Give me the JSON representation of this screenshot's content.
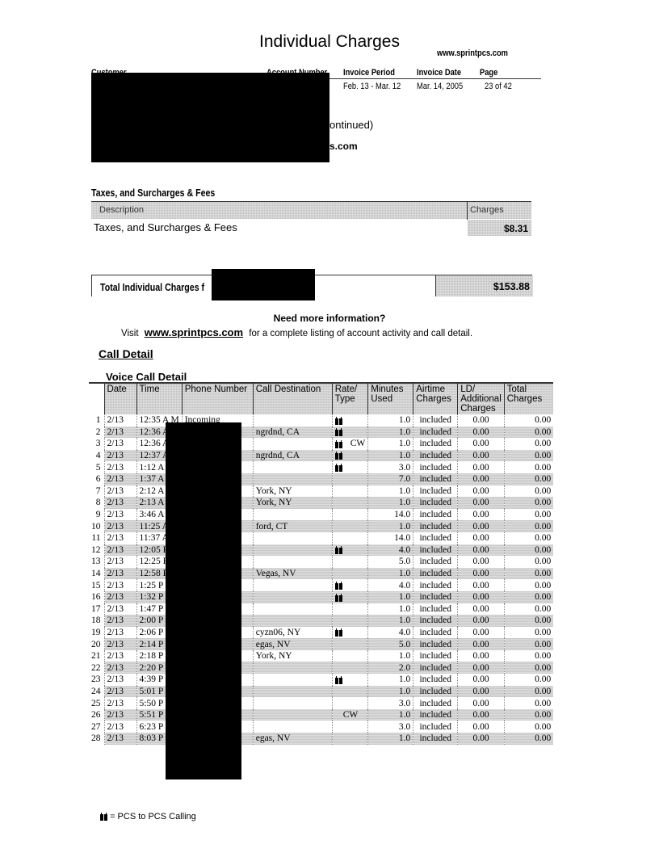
{
  "header": {
    "title": "Individual Charges",
    "website": "www.sprintpcs.com",
    "columns": [
      "Customer",
      "Account Number",
      "Invoice Period",
      "Invoice Date",
      "Page"
    ],
    "invoice_period": "Feb. 13 - Mar. 12",
    "invoice_date": "Mar. 14, 2005",
    "page": "23 of 42",
    "continued_fragment": "ontinued)",
    "email_fragment": "s.com"
  },
  "taxes": {
    "section_title": "Taxes, and Surcharges & Fees",
    "col_description": "Description",
    "col_charges": "Charges",
    "row_description": "Taxes, and Surcharges & Fees",
    "row_charges": "$8.31"
  },
  "total": {
    "label": "Total Individual Charges f",
    "amount": "$153.88"
  },
  "info": {
    "heading": "Need more information?",
    "visit": "Visit",
    "link": "www.sprintpcs.com",
    "rest": "for a complete listing of account activity and call detail."
  },
  "call_detail": {
    "title": "Call Detail",
    "subtitle": "Voice Call Detail",
    "columns": [
      "Date",
      "Time",
      "Phone Number",
      "Call Destination",
      "Rate/ Type",
      "Minutes Used",
      "Airtime Charges",
      "LD/ Additional Charges",
      "Total Charges"
    ],
    "rows": [
      {
        "n": "1",
        "date": "2/13",
        "time": "12:35 A M",
        "phone": "Incoming",
        "dest": "",
        "pcs": true,
        "type": "",
        "min": "1.0",
        "air": "included",
        "ld": "0.00",
        "total": "0.00"
      },
      {
        "n": "2",
        "date": "2/13",
        "time": "12:36 A",
        "phone": "",
        "dest": "ngrdnd, CA",
        "pcs": true,
        "type": "",
        "min": "1.0",
        "air": "included",
        "ld": "0.00",
        "total": "0.00"
      },
      {
        "n": "3",
        "date": "2/13",
        "time": "12:36 A",
        "phone": "",
        "dest": "",
        "pcs": true,
        "type": "CW",
        "min": "1.0",
        "air": "included",
        "ld": "0.00",
        "total": "0.00"
      },
      {
        "n": "4",
        "date": "2/13",
        "time": "12:37 A",
        "phone": "",
        "dest": "ngrdnd, CA",
        "pcs": true,
        "type": "",
        "min": "1.0",
        "air": "included",
        "ld": "0.00",
        "total": "0.00"
      },
      {
        "n": "5",
        "date": "2/13",
        "time": "1:12 A M",
        "phone": "",
        "dest": "",
        "pcs": true,
        "type": "",
        "min": "3.0",
        "air": "included",
        "ld": "0.00",
        "total": "0.00"
      },
      {
        "n": "6",
        "date": "2/13",
        "time": "1:37 A M",
        "phone": "",
        "dest": "",
        "pcs": false,
        "type": "",
        "min": "7.0",
        "air": "included",
        "ld": "0.00",
        "total": "0.00"
      },
      {
        "n": "7",
        "date": "2/13",
        "time": "2:12 A M",
        "phone": "",
        "dest": "York, NY",
        "pcs": false,
        "type": "",
        "min": "1.0",
        "air": "included",
        "ld": "0.00",
        "total": "0.00"
      },
      {
        "n": "8",
        "date": "2/13",
        "time": "2:13 A M",
        "phone": "",
        "dest": "York, NY",
        "pcs": false,
        "type": "",
        "min": "1.0",
        "air": "included",
        "ld": "0.00",
        "total": "0.00"
      },
      {
        "n": "9",
        "date": "2/13",
        "time": "3:46 A M",
        "phone": "",
        "dest": "",
        "pcs": false,
        "type": "",
        "min": "14.0",
        "air": "included",
        "ld": "0.00",
        "total": "0.00"
      },
      {
        "n": "10",
        "date": "2/13",
        "time": "11:25 A",
        "phone": "",
        "dest": "ford, CT",
        "pcs": false,
        "type": "",
        "min": "1.0",
        "air": "included",
        "ld": "0.00",
        "total": "0.00"
      },
      {
        "n": "11",
        "date": "2/13",
        "time": "11:37 A",
        "phone": "",
        "dest": "",
        "pcs": false,
        "type": "",
        "min": "14.0",
        "air": "included",
        "ld": "0.00",
        "total": "0.00"
      },
      {
        "n": "12",
        "date": "2/13",
        "time": "12:05 P",
        "phone": "",
        "dest": "",
        "pcs": true,
        "type": "",
        "min": "4.0",
        "air": "included",
        "ld": "0.00",
        "total": "0.00"
      },
      {
        "n": "13",
        "date": "2/13",
        "time": "12:25 P",
        "phone": "",
        "dest": "",
        "pcs": false,
        "type": "",
        "min": "5.0",
        "air": "included",
        "ld": "0.00",
        "total": "0.00"
      },
      {
        "n": "14",
        "date": "2/13",
        "time": "12:58 P",
        "phone": "",
        "dest": "Vegas, NV",
        "pcs": false,
        "type": "",
        "min": "1.0",
        "air": "included",
        "ld": "0.00",
        "total": "0.00"
      },
      {
        "n": "15",
        "date": "2/13",
        "time": "1:25 P M",
        "phone": "",
        "dest": "",
        "pcs": true,
        "type": "",
        "min": "4.0",
        "air": "included",
        "ld": "0.00",
        "total": "0.00"
      },
      {
        "n": "16",
        "date": "2/13",
        "time": "1:32 P M",
        "phone": "",
        "dest": "",
        "pcs": true,
        "type": "",
        "min": "1.0",
        "air": "included",
        "ld": "0.00",
        "total": "0.00"
      },
      {
        "n": "17",
        "date": "2/13",
        "time": "1:47 P M",
        "phone": "",
        "dest": "",
        "pcs": false,
        "type": "",
        "min": "1.0",
        "air": "included",
        "ld": "0.00",
        "total": "0.00"
      },
      {
        "n": "18",
        "date": "2/13",
        "time": "2:00 P M",
        "phone": "",
        "dest": "",
        "pcs": false,
        "type": "",
        "min": "1.0",
        "air": "included",
        "ld": "0.00",
        "total": "0.00"
      },
      {
        "n": "19",
        "date": "2/13",
        "time": "2:06 P M",
        "phone": "",
        "dest": "cyzn06, NY",
        "pcs": true,
        "type": "",
        "min": "4.0",
        "air": "included",
        "ld": "0.00",
        "total": "0.00"
      },
      {
        "n": "20",
        "date": "2/13",
        "time": "2:14 P M",
        "phone": "",
        "dest": "egas, NV",
        "pcs": false,
        "type": "",
        "min": "5.0",
        "air": "included",
        "ld": "0.00",
        "total": "0.00"
      },
      {
        "n": "21",
        "date": "2/13",
        "time": "2:18 P M",
        "phone": "",
        "dest": "York, NY",
        "pcs": false,
        "type": "",
        "min": "1.0",
        "air": "included",
        "ld": "0.00",
        "total": "0.00"
      },
      {
        "n": "22",
        "date": "2/13",
        "time": "2:20 P M",
        "phone": "",
        "dest": "",
        "pcs": false,
        "type": "",
        "min": "2.0",
        "air": "included",
        "ld": "0.00",
        "total": "0.00"
      },
      {
        "n": "23",
        "date": "2/13",
        "time": "4:39 P M",
        "phone": "",
        "dest": "",
        "pcs": true,
        "type": "",
        "min": "1.0",
        "air": "included",
        "ld": "0.00",
        "total": "0.00"
      },
      {
        "n": "24",
        "date": "2/13",
        "time": "5:01 P M",
        "phone": "",
        "dest": "",
        "pcs": false,
        "type": "",
        "min": "1.0",
        "air": "included",
        "ld": "0.00",
        "total": "0.00"
      },
      {
        "n": "25",
        "date": "2/13",
        "time": "5:50 P M",
        "phone": "",
        "dest": "",
        "pcs": false,
        "type": "",
        "min": "3.0",
        "air": "included",
        "ld": "0.00",
        "total": "0.00"
      },
      {
        "n": "26",
        "date": "2/13",
        "time": "5:51 P M",
        "phone": "",
        "dest": "",
        "pcs": false,
        "type": "CW",
        "min": "1.0",
        "air": "included",
        "ld": "0.00",
        "total": "0.00"
      },
      {
        "n": "27",
        "date": "2/13",
        "time": "6:23 P M",
        "phone": "",
        "dest": "",
        "pcs": false,
        "type": "",
        "min": "3.0",
        "air": "included",
        "ld": "0.00",
        "total": "0.00"
      },
      {
        "n": "28",
        "date": "2/13",
        "time": "8:03 P M",
        "phone": "",
        "dest": "egas, NV",
        "pcs": false,
        "type": "",
        "min": "1.0",
        "air": "included",
        "ld": "0.00",
        "total": "0.00"
      }
    ]
  },
  "legend": {
    "icon": "pcs-phones-icon",
    "text": "= PCS to PCS Calling"
  }
}
